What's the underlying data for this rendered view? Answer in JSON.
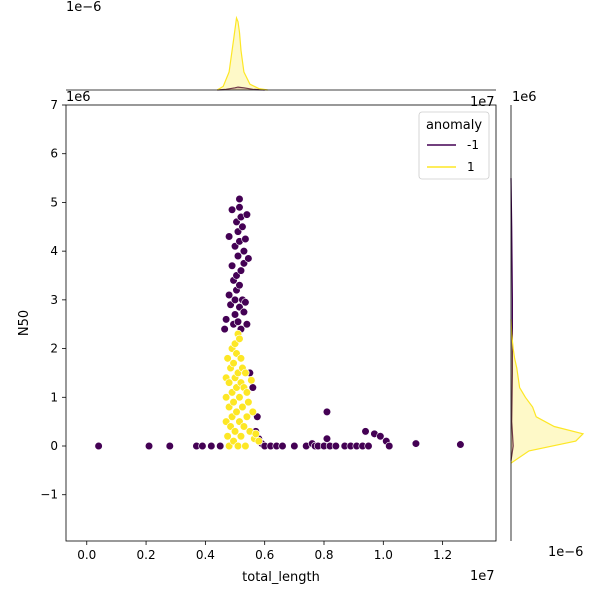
{
  "chart_data": {
    "type": "scatter",
    "title": "",
    "xlabel": "total_length",
    "ylabel": "N50",
    "x_offset_label": "1e7",
    "y_offset_label": "1e6",
    "xlim": [
      -0.07,
      1.38
    ],
    "ylim": [
      -1.95,
      7.0
    ],
    "x_ticks": [
      0.0,
      0.2,
      0.4,
      0.6,
      0.8,
      1.0,
      1.2
    ],
    "x_tick_labels": [
      "0.0",
      "0.2",
      "0.4",
      "0.6",
      "0.8",
      "1.0",
      "1.2"
    ],
    "y_ticks": [
      -1,
      0,
      1,
      2,
      3,
      4,
      5,
      6,
      7
    ],
    "y_tick_labels": [
      "−1",
      "0",
      "1",
      "2",
      "3",
      "4",
      "5",
      "6",
      "7"
    ],
    "grid": false,
    "legend": {
      "title": "anomaly",
      "placement": "top-right",
      "entries": [
        {
          "label": "-1",
          "color": "#440154"
        },
        {
          "label": "1",
          "color": "#fde725"
        }
      ]
    },
    "series": [
      {
        "name": "-1",
        "color": "#440154",
        "points": [
          [
            0.04,
            0.0
          ],
          [
            0.21,
            0.0
          ],
          [
            0.28,
            0.0
          ],
          [
            0.37,
            0.0
          ],
          [
            0.39,
            0.0
          ],
          [
            0.42,
            0.0
          ],
          [
            0.45,
            0.0
          ],
          [
            0.465,
            2.4
          ],
          [
            0.47,
            2.6
          ],
          [
            0.48,
            3.1
          ],
          [
            0.48,
            4.3
          ],
          [
            0.485,
            2.9
          ],
          [
            0.49,
            4.85
          ],
          [
            0.49,
            3.7
          ],
          [
            0.495,
            3.4
          ],
          [
            0.495,
            2.5
          ],
          [
            0.5,
            4.1
          ],
          [
            0.5,
            3.0
          ],
          [
            0.5,
            2.7
          ],
          [
            0.505,
            4.6
          ],
          [
            0.505,
            3.5
          ],
          [
            0.505,
            3.2
          ],
          [
            0.51,
            4.4
          ],
          [
            0.51,
            3.9
          ],
          [
            0.51,
            2.55
          ],
          [
            0.515,
            5.07
          ],
          [
            0.515,
            4.9
          ],
          [
            0.515,
            4.2
          ],
          [
            0.515,
            3.3
          ],
          [
            0.515,
            2.85
          ],
          [
            0.52,
            4.7
          ],
          [
            0.52,
            3.6
          ],
          [
            0.52,
            2.4
          ],
          [
            0.525,
            4.5
          ],
          [
            0.525,
            3.0
          ],
          [
            0.53,
            4.0
          ],
          [
            0.53,
            3.75
          ],
          [
            0.53,
            2.75
          ],
          [
            0.535,
            4.25
          ],
          [
            0.535,
            2.95
          ],
          [
            0.54,
            4.75
          ],
          [
            0.54,
            2.5
          ],
          [
            0.545,
            3.85
          ],
          [
            0.55,
            1.5
          ],
          [
            0.56,
            1.2
          ],
          [
            0.575,
            0.6
          ],
          [
            0.57,
            0.3
          ],
          [
            0.58,
            0.15
          ],
          [
            0.59,
            0.05
          ],
          [
            0.6,
            0.0
          ],
          [
            0.62,
            0.0
          ],
          [
            0.64,
            0.0
          ],
          [
            0.66,
            0.0
          ],
          [
            0.7,
            0.0
          ],
          [
            0.74,
            0.0
          ],
          [
            0.76,
            0.05
          ],
          [
            0.77,
            0.0
          ],
          [
            0.78,
            0.0
          ],
          [
            0.8,
            0.0
          ],
          [
            0.81,
            0.7
          ],
          [
            0.81,
            0.15
          ],
          [
            0.82,
            0.0
          ],
          [
            0.84,
            0.0
          ],
          [
            0.87,
            0.0
          ],
          [
            0.89,
            0.0
          ],
          [
            0.91,
            0.0
          ],
          [
            0.93,
            0.0
          ],
          [
            0.94,
            0.3
          ],
          [
            0.95,
            0.0
          ],
          [
            0.97,
            0.25
          ],
          [
            0.99,
            0.2
          ],
          [
            1.01,
            0.1
          ],
          [
            1.02,
            0.0
          ],
          [
            1.11,
            0.05
          ],
          [
            1.26,
            0.03
          ]
        ]
      },
      {
        "name": "1",
        "color": "#fde725",
        "points": [
          [
            0.47,
            1.4
          ],
          [
            0.47,
            1.0
          ],
          [
            0.47,
            0.5
          ],
          [
            0.475,
            1.8
          ],
          [
            0.475,
            0.2
          ],
          [
            0.48,
            1.3
          ],
          [
            0.48,
            0.8
          ],
          [
            0.48,
            0.0
          ],
          [
            0.485,
            1.6
          ],
          [
            0.485,
            0.4
          ],
          [
            0.49,
            2.0
          ],
          [
            0.49,
            1.1
          ],
          [
            0.49,
            0.6
          ],
          [
            0.495,
            1.7
          ],
          [
            0.495,
            0.9
          ],
          [
            0.495,
            0.1
          ],
          [
            0.5,
            2.1
          ],
          [
            0.5,
            1.4
          ],
          [
            0.5,
            0.3
          ],
          [
            0.505,
            1.9
          ],
          [
            0.505,
            1.2
          ],
          [
            0.505,
            0.7
          ],
          [
            0.51,
            2.3
          ],
          [
            0.51,
            1.5
          ],
          [
            0.51,
            0.0
          ],
          [
            0.515,
            2.2
          ],
          [
            0.515,
            1.0
          ],
          [
            0.515,
            0.5
          ],
          [
            0.52,
            1.8
          ],
          [
            0.52,
            1.3
          ],
          [
            0.52,
            0.2
          ],
          [
            0.525,
            1.6
          ],
          [
            0.525,
            0.8
          ],
          [
            0.53,
            1.2
          ],
          [
            0.53,
            0.4
          ],
          [
            0.535,
            1.5
          ],
          [
            0.535,
            0.0
          ],
          [
            0.54,
            1.1
          ],
          [
            0.54,
            0.6
          ],
          [
            0.545,
            0.9
          ],
          [
            0.55,
            0.3
          ],
          [
            0.555,
            1.35
          ],
          [
            0.56,
            0.7
          ],
          [
            0.565,
            0.15
          ],
          [
            0.57,
            0.25
          ],
          [
            0.58,
            0.1
          ]
        ]
      }
    ],
    "marginal_x": {
      "offset_label": "1e−6",
      "curves": [
        {
          "name": "-1",
          "color": "#440154",
          "x": [
            0.44,
            0.47,
            0.5,
            0.51,
            0.53,
            0.56,
            0.6
          ],
          "density": [
            0.0,
            0.01,
            0.03,
            0.04,
            0.03,
            0.01,
            0.0
          ]
        },
        {
          "name": "1",
          "color": "#fde725",
          "x": [
            0.44,
            0.46,
            0.48,
            0.495,
            0.505,
            0.51,
            0.515,
            0.52,
            0.53,
            0.55,
            0.58,
            0.61
          ],
          "density": [
            0.0,
            0.05,
            0.25,
            0.7,
            1.0,
            0.95,
            0.8,
            0.55,
            0.25,
            0.08,
            0.02,
            0.0
          ]
        }
      ]
    },
    "marginal_y": {
      "offset_label": "1e−6",
      "curves": [
        {
          "name": "-1",
          "color": "#440154",
          "y": [
            -0.3,
            0.0,
            0.5,
            1.5,
            3.0,
            4.5,
            5.5
          ],
          "density": [
            0.0,
            0.03,
            0.01,
            0.02,
            0.02,
            0.01,
            0.0
          ]
        },
        {
          "name": "1",
          "color": "#fde725",
          "y": [
            -0.35,
            -0.1,
            0.1,
            0.25,
            0.4,
            0.6,
            0.8,
            1.0,
            1.2,
            1.4,
            1.6,
            1.8,
            2.0,
            2.3,
            2.6
          ],
          "density": [
            0.0,
            0.25,
            0.9,
            1.0,
            0.6,
            0.35,
            0.3,
            0.2,
            0.12,
            0.1,
            0.08,
            0.05,
            0.03,
            0.01,
            0.0
          ]
        }
      ]
    }
  }
}
